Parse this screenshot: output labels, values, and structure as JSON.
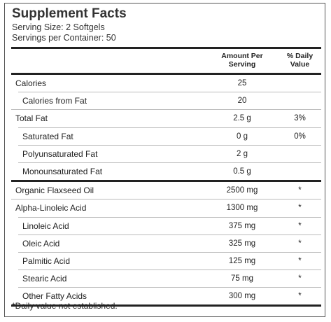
{
  "header": {
    "title": "Supplement Facts",
    "serving_size": "Serving Size: 2 Softgels",
    "servings_per_container": "Servings per Container: 50"
  },
  "table": {
    "columns": {
      "amount": "Amount Per Serving",
      "daily_value": "% Daily Value"
    },
    "sections": [
      [
        {
          "name": "Calories",
          "amount": "25",
          "sub": [
            {
              "name": "Calories from Fat",
              "amount": "20"
            }
          ]
        },
        {
          "name": "Total Fat",
          "amount": "2.5 g",
          "daily_value": "3%",
          "sub": [
            {
              "name": "Saturated Fat",
              "amount": "0 g",
              "daily_value": "0%"
            },
            {
              "name": "Polyunsaturated Fat",
              "amount": "2 g"
            },
            {
              "name": "Monounsaturated Fat",
              "amount": "0.5 g"
            }
          ]
        }
      ],
      [
        {
          "name": "Organic Flaxseed Oil",
          "amount": "2500 mg",
          "daily_value": "*"
        },
        {
          "name": "Alpha-Linoleic Acid",
          "amount": "1300 mg",
          "daily_value": "*",
          "sub": [
            {
              "name": "Linoleic Acid",
              "amount": "375 mg",
              "daily_value": "*"
            },
            {
              "name": "Oleic Acid",
              "amount": "325 mg",
              "daily_value": "*"
            },
            {
              "name": "Palmitic Acid",
              "amount": "125 mg",
              "daily_value": "*"
            },
            {
              "name": "Stearic Acid",
              "amount": "75 mg",
              "daily_value": "*"
            },
            {
              "name": "Other Fatty Acids",
              "amount": "300 mg",
              "daily_value": "*"
            }
          ]
        }
      ]
    ]
  },
  "footnote": "*Daily value not established."
}
